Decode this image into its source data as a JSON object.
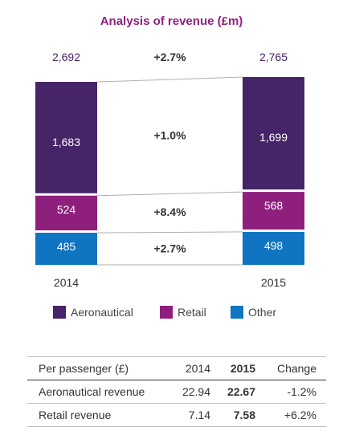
{
  "chart_data": {
    "type": "bar",
    "title": "Analysis of revenue (£m)",
    "categories": [
      "2014",
      "2015"
    ],
    "totals": [
      "2,692",
      "2,765"
    ],
    "total_change": "+2.7%",
    "series": [
      {
        "name": "Aeronautical",
        "values": [
          1683,
          1699
        ],
        "labels": [
          "1,683",
          "1,699"
        ],
        "change": "+1.0%",
        "color": "#452468"
      },
      {
        "name": "Retail",
        "values": [
          524,
          568
        ],
        "labels": [
          "524",
          "568"
        ],
        "change": "+8.4%",
        "color": "#8f1f7d"
      },
      {
        "name": "Other",
        "values": [
          485,
          498
        ],
        "labels": [
          "485",
          "498"
        ],
        "change": "+2.7%",
        "color": "#0f75c2"
      }
    ],
    "stacked": true,
    "legend": "bottom"
  },
  "table": {
    "headers": [
      "Per passenger (£)",
      "2014",
      "2015",
      "Change"
    ],
    "rows": [
      [
        "Aeronautical revenue",
        "22.94",
        "22.67",
        "-1.2%"
      ],
      [
        "Retail revenue",
        "7.14",
        "7.58",
        "+6.2%"
      ]
    ]
  }
}
